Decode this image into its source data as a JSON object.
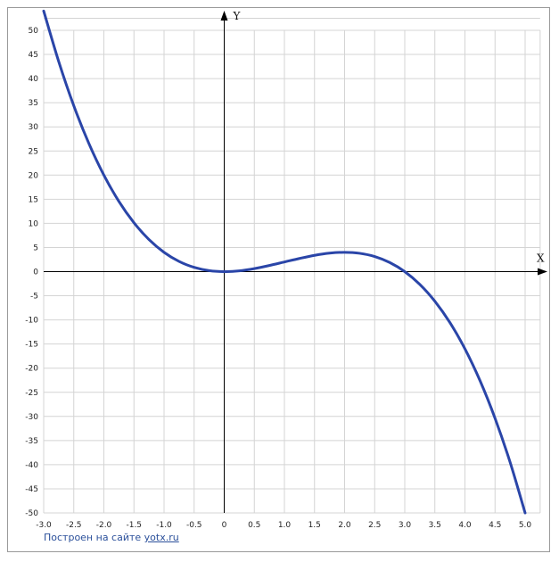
{
  "chart_data": {
    "type": "line",
    "xlabel": "X",
    "ylabel": "Y",
    "xlim": [
      -3.0,
      5.0
    ],
    "ylim": [
      -50,
      50
    ],
    "x_ticks": [
      "-3.0",
      "-2.5",
      "-2.0",
      "-1.5",
      "-1.0",
      "-0.5",
      "0",
      "0.5",
      "1.0",
      "1.5",
      "2.0",
      "2.5",
      "3.0",
      "3.5",
      "4.0",
      "4.5",
      "5.0"
    ],
    "y_ticks": [
      "50",
      "45",
      "40",
      "35",
      "30",
      "25",
      "20",
      "15",
      "10",
      "5",
      "0",
      "-5",
      "-10",
      "-15",
      "-20",
      "-25",
      "-30",
      "-35",
      "-40",
      "-45",
      "-50"
    ],
    "grid": true,
    "series": [
      {
        "color": "#2a45a8",
        "x": [
          -3.0,
          -2.75,
          -2.5,
          -2.25,
          -2.0,
          -1.75,
          -1.5,
          -1.25,
          -1.0,
          -0.75,
          -0.5,
          -0.25,
          0,
          0.25,
          0.5,
          0.75,
          1.0,
          1.25,
          1.5,
          1.75,
          2.0,
          2.25,
          2.5,
          2.75,
          3.0,
          3.25,
          3.5,
          3.75,
          4.0,
          4.25,
          4.5,
          4.75,
          5.0
        ],
        "y": [
          54.0,
          43.52,
          34.38,
          26.58,
          20.0,
          14.55,
          10.13,
          6.64,
          4.0,
          2.11,
          0.88,
          0.2,
          0.0,
          0.17,
          0.63,
          1.27,
          2.0,
          2.73,
          3.38,
          3.83,
          4.0,
          3.8,
          3.13,
          1.89,
          0.0,
          -2.64,
          -6.13,
          -10.55,
          -16.0,
          -22.58,
          -30.38,
          -39.48,
          -50.0
        ]
      }
    ]
  },
  "credit": {
    "prefix": "Построен на сайте",
    "link": "yotx.ru"
  }
}
